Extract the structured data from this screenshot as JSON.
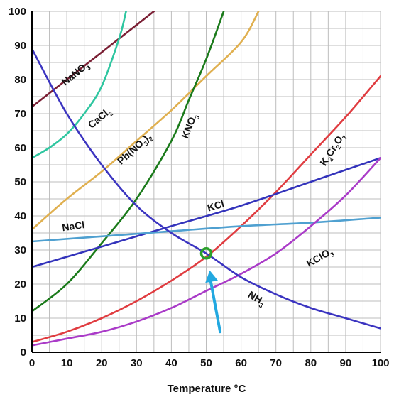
{
  "chart_data": {
    "type": "line",
    "title": "",
    "xlabel": "Temperature °C",
    "ylabel": "",
    "xlim": [
      0,
      100
    ],
    "ylim": [
      0,
      100
    ],
    "x_ticks": [
      "0",
      "10",
      "20",
      "30",
      "40",
      "50",
      "60",
      "70",
      "80",
      "90",
      "100"
    ],
    "y_ticks": [
      "0",
      "10",
      "20",
      "30",
      "40",
      "50",
      "60",
      "70",
      "80",
      "90",
      "100"
    ],
    "grid": true,
    "legend": "none",
    "series": [
      {
        "name": "NaNO₃",
        "color": "#7b2035",
        "x": [
          0,
          10,
          20,
          30,
          35
        ],
        "y": [
          72,
          80,
          88,
          96,
          100
        ]
      },
      {
        "name": "CaCl₂",
        "color": "#2fc6a0",
        "x": [
          0,
          5,
          10,
          15,
          20,
          25,
          27
        ],
        "y": [
          57,
          60,
          64,
          70,
          78,
          92,
          100
        ]
      },
      {
        "name": "Pb(NO₃)₂",
        "color": "#e0b050",
        "x": [
          0,
          10,
          20,
          30,
          40,
          50,
          60,
          65
        ],
        "y": [
          36,
          45,
          53,
          62,
          71,
          81,
          91,
          100
        ]
      },
      {
        "name": "KNO₃",
        "color": "#1a7a1a",
        "x": [
          0,
          10,
          20,
          30,
          40,
          45,
          50,
          55
        ],
        "y": [
          12,
          20,
          32,
          45,
          62,
          74,
          86,
          100
        ]
      },
      {
        "name": "K₂Cr₂O₇",
        "color": "#e03c40",
        "x": [
          0,
          10,
          20,
          30,
          40,
          50,
          60,
          70,
          80,
          90,
          100
        ],
        "y": [
          3,
          6,
          10,
          15,
          21,
          28,
          37,
          47,
          58,
          69,
          81
        ]
      },
      {
        "name": "KCl",
        "color": "#3333bb",
        "x": [
          0,
          20,
          40,
          60,
          80,
          100
        ],
        "y": [
          25,
          31,
          37,
          43,
          50,
          57
        ]
      },
      {
        "name": "NaCl",
        "color": "#4fa0d0",
        "x": [
          0,
          20,
          40,
          60,
          80,
          100
        ],
        "y": [
          32.5,
          34,
          35.5,
          37,
          38,
          39.5
        ]
      },
      {
        "name": "KClO₃",
        "color": "#aa3bc8",
        "x": [
          0,
          10,
          20,
          30,
          40,
          50,
          60,
          70,
          80,
          90,
          100
        ],
        "y": [
          2,
          4,
          6,
          9,
          13,
          18,
          23,
          29,
          37,
          46,
          57
        ]
      },
      {
        "name": "NH₃",
        "color": "#3b34c0",
        "x": [
          0,
          10,
          20,
          30,
          40,
          50,
          60,
          70,
          80,
          90,
          100
        ],
        "y": [
          89,
          70,
          55,
          43,
          35,
          29,
          22,
          17,
          13,
          10,
          7
        ]
      }
    ],
    "labels": [
      {
        "parts": [
          [
            "NaNO",
            ""
          ],
          [
            "3",
            "sub"
          ]
        ],
        "x": 13,
        "y": 81,
        "angle": -39
      },
      {
        "parts": [
          [
            "CaCl",
            ""
          ],
          [
            "2",
            "sub"
          ]
        ],
        "x": 20,
        "y": 68,
        "angle": -40
      },
      {
        "parts": [
          [
            "Pb(NO",
            ""
          ],
          [
            "3",
            "sub"
          ],
          [
            ")",
            ""
          ],
          [
            "2",
            "sub"
          ]
        ],
        "x": 30,
        "y": 59,
        "angle": -42
      },
      {
        "parts": [
          [
            "KNO",
            ""
          ],
          [
            "3",
            "sub"
          ]
        ],
        "x": 46,
        "y": 66,
        "angle": -68
      },
      {
        "parts": [
          [
            "K",
            ""
          ],
          [
            "2",
            "sub"
          ],
          [
            "Cr",
            ""
          ],
          [
            "2",
            "sub"
          ],
          [
            "O",
            ""
          ],
          [
            "7",
            "sub"
          ]
        ],
        "x": 87,
        "y": 59,
        "angle": -57
      },
      {
        "parts": [
          [
            "KCl",
            ""
          ]
        ],
        "x": 53,
        "y": 42,
        "angle": -16
      },
      {
        "parts": [
          [
            "NaCl",
            ""
          ]
        ],
        "x": 12,
        "y": 36,
        "angle": -8
      },
      {
        "parts": [
          [
            "KClO",
            ""
          ],
          [
            "3",
            "sub"
          ]
        ],
        "x": 83,
        "y": 27,
        "angle": -30
      },
      {
        "parts": [
          [
            "NH",
            ""
          ],
          [
            "3",
            "sub"
          ]
        ],
        "x": 64,
        "y": 15,
        "angle": 30
      }
    ],
    "annotations": [
      {
        "type": "marker-circle",
        "color": "#2aa02a",
        "x": 50,
        "y": 29
      },
      {
        "type": "arrow",
        "color": "#22a8e0",
        "from": [
          54,
          6
        ],
        "to": [
          51,
          24
        ]
      }
    ]
  }
}
